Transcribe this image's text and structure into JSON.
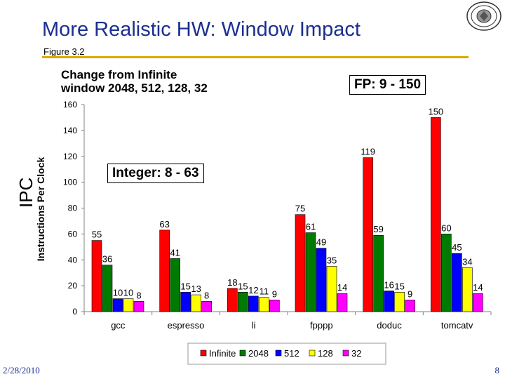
{
  "slide": {
    "title": "More Realistic HW: Window Impact",
    "subtitle": "Figure 3.2",
    "note_line1": "Change from Infinite",
    "note_line2": "window 2048, 512, 128, 32",
    "fp_box": "FP: 9 - 150",
    "int_box": "Integer: 8 - 63",
    "overlay_label": "IPC",
    "footer_date": "2/28/2010",
    "footer_page": "8"
  },
  "chart_data": {
    "type": "bar",
    "title": "",
    "xlabel": "",
    "ylabel": "Instructions Per Clock",
    "ylim": [
      0,
      160
    ],
    "yticks": [
      0,
      20,
      40,
      60,
      80,
      100,
      120,
      140,
      160
    ],
    "categories": [
      "gcc",
      "espresso",
      "li",
      "fpppp",
      "doduc",
      "tomcatv"
    ],
    "series": [
      {
        "name": "Infinite",
        "color": "#ff0000",
        "values": [
          55,
          63,
          18,
          75,
          119,
          150
        ]
      },
      {
        "name": "2048",
        "color": "#007a00",
        "values": [
          36,
          41,
          15,
          61,
          59,
          60
        ]
      },
      {
        "name": "512",
        "color": "#0000ff",
        "values": [
          10,
          15,
          12,
          49,
          16,
          45
        ]
      },
      {
        "name": "128",
        "color": "#ffff00",
        "values": [
          10,
          13,
          11,
          35,
          15,
          34
        ]
      },
      {
        "name": "32",
        "color": "#ff00ff",
        "values": [
          8,
          8,
          9,
          14,
          9,
          14
        ]
      }
    ],
    "legend_position": "bottom"
  }
}
